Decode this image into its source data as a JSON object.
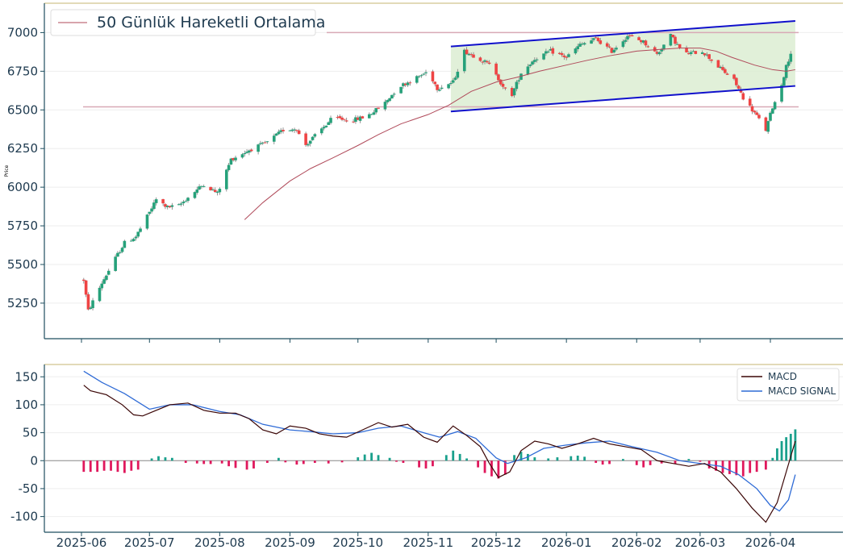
{
  "colors": {
    "up": "#26a17a",
    "down": "#ef4444",
    "axis": "#1e4e5f",
    "tick_text": "#1e3a4f",
    "grid": "#eeeeee",
    "ma": "#b04a5a",
    "channel_line": "#1010cc",
    "channel_fill": "#d9ecd0",
    "hline": "#d8a9b6",
    "macd": "#3a0505",
    "signal": "#2f6bd6",
    "hist_pos": "#1aa08c",
    "hist_neg": "#e0185c",
    "frame_top": "#d8ceA0"
  },
  "chart_data": [
    {
      "type": "candlestick",
      "ylabel": "Price",
      "ylim": [
        5020,
        7190
      ],
      "y_ticks": [
        5250,
        5500,
        5750,
        6000,
        6250,
        6500,
        6750,
        7000
      ],
      "legend": {
        "label": "50 Günlük Hareketli Ortalama",
        "position": "top-left"
      },
      "horizontal_lines": [
        7000,
        6520
      ],
      "channel": {
        "start_date": "2025-11-11",
        "end_date": "2026-04-12",
        "upper": [
          6910,
          7075
        ],
        "lower": [
          6490,
          6655
        ]
      },
      "anchors": [
        [
          "2025-06-02",
          5400
        ],
        [
          "2025-06-04",
          5200
        ],
        [
          "2025-06-06",
          5260
        ],
        [
          "2025-06-10",
          5380
        ],
        [
          "2025-06-16",
          5540
        ],
        [
          "2025-06-20",
          5640
        ],
        [
          "2025-06-25",
          5680
        ],
        [
          "2025-06-30",
          5810
        ],
        [
          "2025-07-04",
          5920
        ],
        [
          "2025-07-09",
          5870
        ],
        [
          "2025-07-14",
          5880
        ],
        [
          "2025-07-20",
          5960
        ],
        [
          "2025-07-25",
          6020
        ],
        [
          "2025-07-31",
          5960
        ],
        [
          "2025-08-06",
          6180
        ],
        [
          "2025-08-14",
          6240
        ],
        [
          "2025-08-22",
          6290
        ],
        [
          "2025-08-29",
          6370
        ],
        [
          "2025-09-04",
          6380
        ],
        [
          "2025-09-07",
          6260
        ],
        [
          "2025-09-14",
          6360
        ],
        [
          "2025-09-20",
          6450
        ],
        [
          "2025-09-28",
          6430
        ],
        [
          "2025-10-05",
          6460
        ],
        [
          "2025-10-12",
          6530
        ],
        [
          "2025-10-19",
          6650
        ],
        [
          "2025-10-26",
          6700
        ],
        [
          "2025-11-01",
          6750
        ],
        [
          "2025-11-05",
          6640
        ],
        [
          "2025-11-12",
          6680
        ],
        [
          "2025-11-17",
          6880
        ],
        [
          "2025-11-24",
          6830
        ],
        [
          "2025-11-30",
          6770
        ],
        [
          "2025-12-04",
          6640
        ],
        [
          "2025-12-08",
          6600
        ],
        [
          "2025-12-12",
          6740
        ],
        [
          "2025-12-18",
          6830
        ],
        [
          "2025-12-25",
          6880
        ],
        [
          "2026-01-01",
          6840
        ],
        [
          "2026-01-07",
          6920
        ],
        [
          "2026-01-14",
          6960
        ],
        [
          "2026-01-21",
          6880
        ],
        [
          "2026-01-28",
          6980
        ],
        [
          "2026-02-04",
          6940
        ],
        [
          "2026-02-10",
          6860
        ],
        [
          "2026-02-16",
          6980
        ],
        [
          "2026-02-22",
          6860
        ],
        [
          "2026-03-02",
          6880
        ],
        [
          "2026-03-09",
          6780
        ],
        [
          "2026-03-16",
          6690
        ],
        [
          "2026-03-20",
          6580
        ],
        [
          "2026-03-26",
          6460
        ],
        [
          "2026-03-30",
          6370
        ],
        [
          "2026-04-02",
          6520
        ],
        [
          "2026-04-05",
          6610
        ],
        [
          "2026-04-08",
          6780
        ],
        [
          "2026-04-12",
          6960
        ]
      ],
      "moving_average_50": [
        [
          "2025-08-12",
          5790
        ],
        [
          "2025-08-20",
          5900
        ],
        [
          "2025-09-01",
          6040
        ],
        [
          "2025-09-10",
          6120
        ],
        [
          "2025-09-20",
          6190
        ],
        [
          "2025-10-01",
          6270
        ],
        [
          "2025-10-10",
          6340
        ],
        [
          "2025-10-20",
          6410
        ],
        [
          "2025-11-01",
          6470
        ],
        [
          "2025-11-10",
          6530
        ],
        [
          "2025-11-20",
          6620
        ],
        [
          "2025-12-01",
          6680
        ],
        [
          "2025-12-10",
          6710
        ],
        [
          "2025-12-20",
          6750
        ],
        [
          "2026-01-01",
          6790
        ],
        [
          "2026-01-10",
          6820
        ],
        [
          "2026-01-20",
          6850
        ],
        [
          "2026-02-01",
          6880
        ],
        [
          "2026-02-10",
          6890
        ],
        [
          "2026-02-20",
          6900
        ],
        [
          "2026-03-01",
          6900
        ],
        [
          "2026-03-08",
          6880
        ],
        [
          "2026-03-15",
          6840
        ],
        [
          "2026-03-25",
          6790
        ],
        [
          "2026-04-02",
          6760
        ],
        [
          "2026-04-08",
          6750
        ],
        [
          "2026-04-12",
          6760
        ]
      ]
    },
    {
      "type": "line",
      "ylim": [
        -128,
        172
      ],
      "y_ticks": [
        -100,
        -50,
        0,
        50,
        100,
        150
      ],
      "x_ticks": [
        "2025-06",
        "2025-07",
        "2025-08",
        "2025-09",
        "2025-10",
        "2025-11",
        "2025-12",
        "2026-01",
        "2026-02",
        "2026-03",
        "2026-04"
      ],
      "legend_position": "top-right",
      "series": [
        {
          "name": "MACD",
          "points": [
            [
              "2025-06-02",
              135
            ],
            [
              "2025-06-05",
              125
            ],
            [
              "2025-06-12",
              118
            ],
            [
              "2025-06-19",
              100
            ],
            [
              "2025-06-24",
              82
            ],
            [
              "2025-06-28",
              80
            ],
            [
              "2025-07-04",
              90
            ],
            [
              "2025-07-10",
              100
            ],
            [
              "2025-07-18",
              103
            ],
            [
              "2025-07-25",
              90
            ],
            [
              "2025-08-01",
              85
            ],
            [
              "2025-08-08",
              85
            ],
            [
              "2025-08-14",
              75
            ],
            [
              "2025-08-20",
              55
            ],
            [
              "2025-08-26",
              48
            ],
            [
              "2025-09-01",
              62
            ],
            [
              "2025-09-08",
              58
            ],
            [
              "2025-09-14",
              48
            ],
            [
              "2025-09-20",
              44
            ],
            [
              "2025-09-26",
              42
            ],
            [
              "2025-10-03",
              55
            ],
            [
              "2025-10-10",
              68
            ],
            [
              "2025-10-16",
              60
            ],
            [
              "2025-10-23",
              65
            ],
            [
              "2025-10-30",
              42
            ],
            [
              "2025-11-05",
              33
            ],
            [
              "2025-11-12",
              62
            ],
            [
              "2025-11-18",
              45
            ],
            [
              "2025-11-24",
              25
            ],
            [
              "2025-11-28",
              -5
            ],
            [
              "2025-12-02",
              -30
            ],
            [
              "2025-12-07",
              -20
            ],
            [
              "2025-12-12",
              18
            ],
            [
              "2025-12-18",
              35
            ],
            [
              "2025-12-24",
              30
            ],
            [
              "2025-12-30",
              22
            ],
            [
              "2026-01-06",
              30
            ],
            [
              "2026-01-13",
              40
            ],
            [
              "2026-01-20",
              30
            ],
            [
              "2026-01-27",
              25
            ],
            [
              "2026-02-03",
              20
            ],
            [
              "2026-02-10",
              0
            ],
            [
              "2026-02-17",
              -5
            ],
            [
              "2026-02-24",
              -10
            ],
            [
              "2026-03-03",
              -5
            ],
            [
              "2026-03-10",
              -20
            ],
            [
              "2026-03-17",
              -50
            ],
            [
              "2026-03-24",
              -85
            ],
            [
              "2026-03-30",
              -110
            ],
            [
              "2026-04-04",
              -75
            ],
            [
              "2026-04-08",
              -20
            ],
            [
              "2026-04-12",
              35
            ]
          ]
        },
        {
          "name": "MACD SIGNAL",
          "points": [
            [
              "2025-06-02",
              160
            ],
            [
              "2025-06-10",
              140
            ],
            [
              "2025-06-20",
              120
            ],
            [
              "2025-07-01",
              92
            ],
            [
              "2025-07-10",
              100
            ],
            [
              "2025-07-20",
              100
            ],
            [
              "2025-08-01",
              88
            ],
            [
              "2025-08-10",
              82
            ],
            [
              "2025-08-20",
              65
            ],
            [
              "2025-09-01",
              55
            ],
            [
              "2025-09-10",
              52
            ],
            [
              "2025-09-20",
              48
            ],
            [
              "2025-10-01",
              50
            ],
            [
              "2025-10-10",
              58
            ],
            [
              "2025-10-20",
              62
            ],
            [
              "2025-10-30",
              50
            ],
            [
              "2025-11-06",
              42
            ],
            [
              "2025-11-14",
              52
            ],
            [
              "2025-11-22",
              40
            ],
            [
              "2025-12-01",
              5
            ],
            [
              "2025-12-06",
              -5
            ],
            [
              "2025-12-14",
              5
            ],
            [
              "2025-12-22",
              22
            ],
            [
              "2026-01-01",
              28
            ],
            [
              "2026-01-10",
              32
            ],
            [
              "2026-01-20",
              35
            ],
            [
              "2026-01-30",
              25
            ],
            [
              "2026-02-10",
              15
            ],
            [
              "2026-02-20",
              0
            ],
            [
              "2026-03-01",
              -5
            ],
            [
              "2026-03-10",
              -10
            ],
            [
              "2026-03-18",
              -25
            ],
            [
              "2026-03-26",
              -50
            ],
            [
              "2026-04-01",
              -80
            ],
            [
              "2026-04-05",
              -90
            ],
            [
              "2026-04-09",
              -70
            ],
            [
              "2026-04-12",
              -25
            ]
          ]
        }
      ],
      "histogram": [
        [
          "2025-06-02",
          -20
        ],
        [
          "2025-06-05",
          -20
        ],
        [
          "2025-06-08",
          -20
        ],
        [
          "2025-06-11",
          -18
        ],
        [
          "2025-06-14",
          -18
        ],
        [
          "2025-06-17",
          -20
        ],
        [
          "2025-06-20",
          -22
        ],
        [
          "2025-06-23",
          -18
        ],
        [
          "2025-06-26",
          -16
        ],
        [
          "2025-07-02",
          4
        ],
        [
          "2025-07-05",
          8
        ],
        [
          "2025-07-08",
          6
        ],
        [
          "2025-07-11",
          5
        ],
        [
          "2025-07-17",
          -4
        ],
        [
          "2025-07-22",
          -5
        ],
        [
          "2025-07-25",
          -6
        ],
        [
          "2025-07-28",
          -6
        ],
        [
          "2025-08-02",
          -5
        ],
        [
          "2025-08-05",
          -10
        ],
        [
          "2025-08-08",
          -13
        ],
        [
          "2025-08-13",
          -16
        ],
        [
          "2025-08-16",
          -14
        ],
        [
          "2025-08-22",
          -4
        ],
        [
          "2025-08-27",
          5
        ],
        [
          "2025-08-30",
          -3
        ],
        [
          "2025-09-04",
          -7
        ],
        [
          "2025-09-07",
          -6
        ],
        [
          "2025-09-12",
          -4
        ],
        [
          "2025-09-18",
          -5
        ],
        [
          "2025-09-24",
          -3
        ],
        [
          "2025-10-01",
          6
        ],
        [
          "2025-10-04",
          11
        ],
        [
          "2025-10-07",
          14
        ],
        [
          "2025-10-10",
          10
        ],
        [
          "2025-10-15",
          5
        ],
        [
          "2025-10-18",
          -2
        ],
        [
          "2025-10-21",
          -4
        ],
        [
          "2025-10-28",
          -12
        ],
        [
          "2025-10-31",
          -14
        ],
        [
          "2025-11-03",
          -10
        ],
        [
          "2025-11-09",
          10
        ],
        [
          "2025-11-12",
          18
        ],
        [
          "2025-11-15",
          12
        ],
        [
          "2025-11-18",
          4
        ],
        [
          "2025-11-23",
          -12
        ],
        [
          "2025-11-26",
          -22
        ],
        [
          "2025-11-29",
          -28
        ],
        [
          "2025-12-02",
          -32
        ],
        [
          "2025-12-05",
          -25
        ],
        [
          "2025-12-09",
          10
        ],
        [
          "2025-12-12",
          16
        ],
        [
          "2025-12-15",
          12
        ],
        [
          "2025-12-18",
          6
        ],
        [
          "2025-12-24",
          4
        ],
        [
          "2025-12-28",
          6
        ],
        [
          "2026-01-03",
          8
        ],
        [
          "2026-01-06",
          9
        ],
        [
          "2026-01-09",
          7
        ],
        [
          "2026-01-14",
          -4
        ],
        [
          "2026-01-17",
          -7
        ],
        [
          "2026-01-20",
          -6
        ],
        [
          "2026-01-26",
          3
        ],
        [
          "2026-02-01",
          -8
        ],
        [
          "2026-02-04",
          -12
        ],
        [
          "2026-02-07",
          -8
        ],
        [
          "2026-02-12",
          -5
        ],
        [
          "2026-02-18",
          -6
        ],
        [
          "2026-02-24",
          3
        ],
        [
          "2026-03-01",
          -2
        ],
        [
          "2026-03-05",
          -14
        ],
        [
          "2026-03-08",
          -18
        ],
        [
          "2026-03-11",
          -22
        ],
        [
          "2026-03-14",
          -24
        ],
        [
          "2026-03-17",
          -26
        ],
        [
          "2026-03-20",
          -28
        ],
        [
          "2026-03-23",
          -22
        ],
        [
          "2026-03-26",
          -20
        ],
        [
          "2026-03-30",
          -16
        ],
        [
          "2026-04-02",
          5
        ],
        [
          "2026-04-04",
          22
        ],
        [
          "2026-04-06",
          35
        ],
        [
          "2026-04-08",
          42
        ],
        [
          "2026-04-10",
          48
        ],
        [
          "2026-04-12",
          56
        ]
      ]
    }
  ]
}
